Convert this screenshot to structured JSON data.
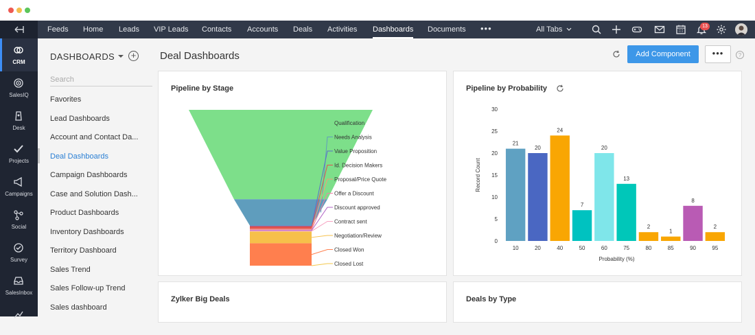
{
  "window": {
    "controls": {
      "close": "#ee5a52",
      "minimize": "#f4be4f",
      "maximize": "#5cc65a"
    }
  },
  "topnav": {
    "back_icon": "collapse-arrow-icon",
    "items": [
      "Feeds",
      "Home",
      "Leads",
      "VIP Leads",
      "Contacts",
      "Accounts",
      "Deals",
      "Activities",
      "Dashboards",
      "Documents"
    ],
    "active": "Dashboards",
    "more": "•••",
    "all_tabs": "All Tabs",
    "icons": [
      "search-icon",
      "plus-icon",
      "gamepad-icon",
      "mail-icon",
      "calendar-icon",
      "bell-icon",
      "gear-icon"
    ],
    "notification_count": "13"
  },
  "rail": {
    "items": [
      {
        "label": "CRM",
        "icon": "crm-icon"
      },
      {
        "label": "SalesIQ",
        "icon": "salesiq-icon"
      },
      {
        "label": "Desk",
        "icon": "desk-icon"
      },
      {
        "label": "Projects",
        "icon": "projects-icon"
      },
      {
        "label": "Campaigns",
        "icon": "campaigns-icon"
      },
      {
        "label": "Social",
        "icon": "social-icon"
      },
      {
        "label": "Survey",
        "icon": "survey-icon"
      },
      {
        "label": "SalesInbox",
        "icon": "salesinbox-icon"
      }
    ]
  },
  "sidebar": {
    "title": "DASHBOARDS",
    "search_placeholder": "Search",
    "items": [
      "Favorites",
      "Lead Dashboards",
      "Account and Contact Da...",
      "Deal Dashboards",
      "Campaign Dashboards",
      "Case and Solution Dash...",
      "Product Dashboards",
      "Inventory Dashboards",
      "Territory Dashboard",
      "Sales Trend",
      "Sales Follow-up Trend",
      "Sales dashboard"
    ],
    "active": "Deal Dashboards"
  },
  "main": {
    "title": "Deal Dashboards",
    "add_component": "Add Component",
    "more": "•••",
    "help": "?"
  },
  "cards": {
    "pipeline_stage": {
      "title": "Pipeline by Stage"
    },
    "pipeline_probability": {
      "title": "Pipeline by Probability"
    },
    "big_deals": {
      "title": "Zylker Big Deals"
    },
    "deals_type": {
      "title": "Deals by Type"
    }
  },
  "chart_data": [
    {
      "type": "funnel",
      "title": "Pipeline by Stage",
      "stages": [
        {
          "label": "Qualification",
          "color": "#7ddf8a",
          "value": 68
        },
        {
          "label": "Needs Analysis",
          "color": "#5f9dbd",
          "value": 20
        },
        {
          "label": "Value Proposition",
          "color": "#5b6fc7",
          "value": 0.5
        },
        {
          "label": "Id. Decision Makers",
          "color": "#e0524f",
          "value": 2
        },
        {
          "label": "Proposal/Price Quote",
          "color": "#f59a7b",
          "value": 0.5
        },
        {
          "label": "Offer a Discount",
          "color": "#f07fa4",
          "value": 0.5
        },
        {
          "label": "Discount approved",
          "color": "#b061c6",
          "value": 0.5
        },
        {
          "label": "Contract sent",
          "color": "#f7a1c1",
          "value": 0.5
        },
        {
          "label": "Negotiation/Review",
          "color": "#f6c04a",
          "value": 9
        },
        {
          "label": "Closed Won",
          "color": "#ff7f4e",
          "value": 17
        },
        {
          "label": "Closed Lost",
          "color": "#f3c74b",
          "value": 0
        }
      ]
    },
    {
      "type": "bar",
      "title": "Pipeline by Probability",
      "xlabel": "Probability (%)",
      "ylabel": "Record Count",
      "ylim": [
        0,
        30
      ],
      "yticks": [
        0,
        5,
        10,
        15,
        20,
        25,
        30
      ],
      "categories": [
        "10",
        "20",
        "40",
        "50",
        "60",
        "75",
        "80",
        "85",
        "90",
        "95"
      ],
      "values": [
        21,
        20,
        24,
        7,
        20,
        13,
        2,
        1,
        8,
        2
      ],
      "colors": [
        "#5fa1c2",
        "#4a67c2",
        "#f9a603",
        "#00c2c0",
        "#7fe6ea",
        "#00c7b9",
        "#f9a603",
        "#f9a603",
        "#b95bb4",
        "#f9a603"
      ]
    }
  ]
}
